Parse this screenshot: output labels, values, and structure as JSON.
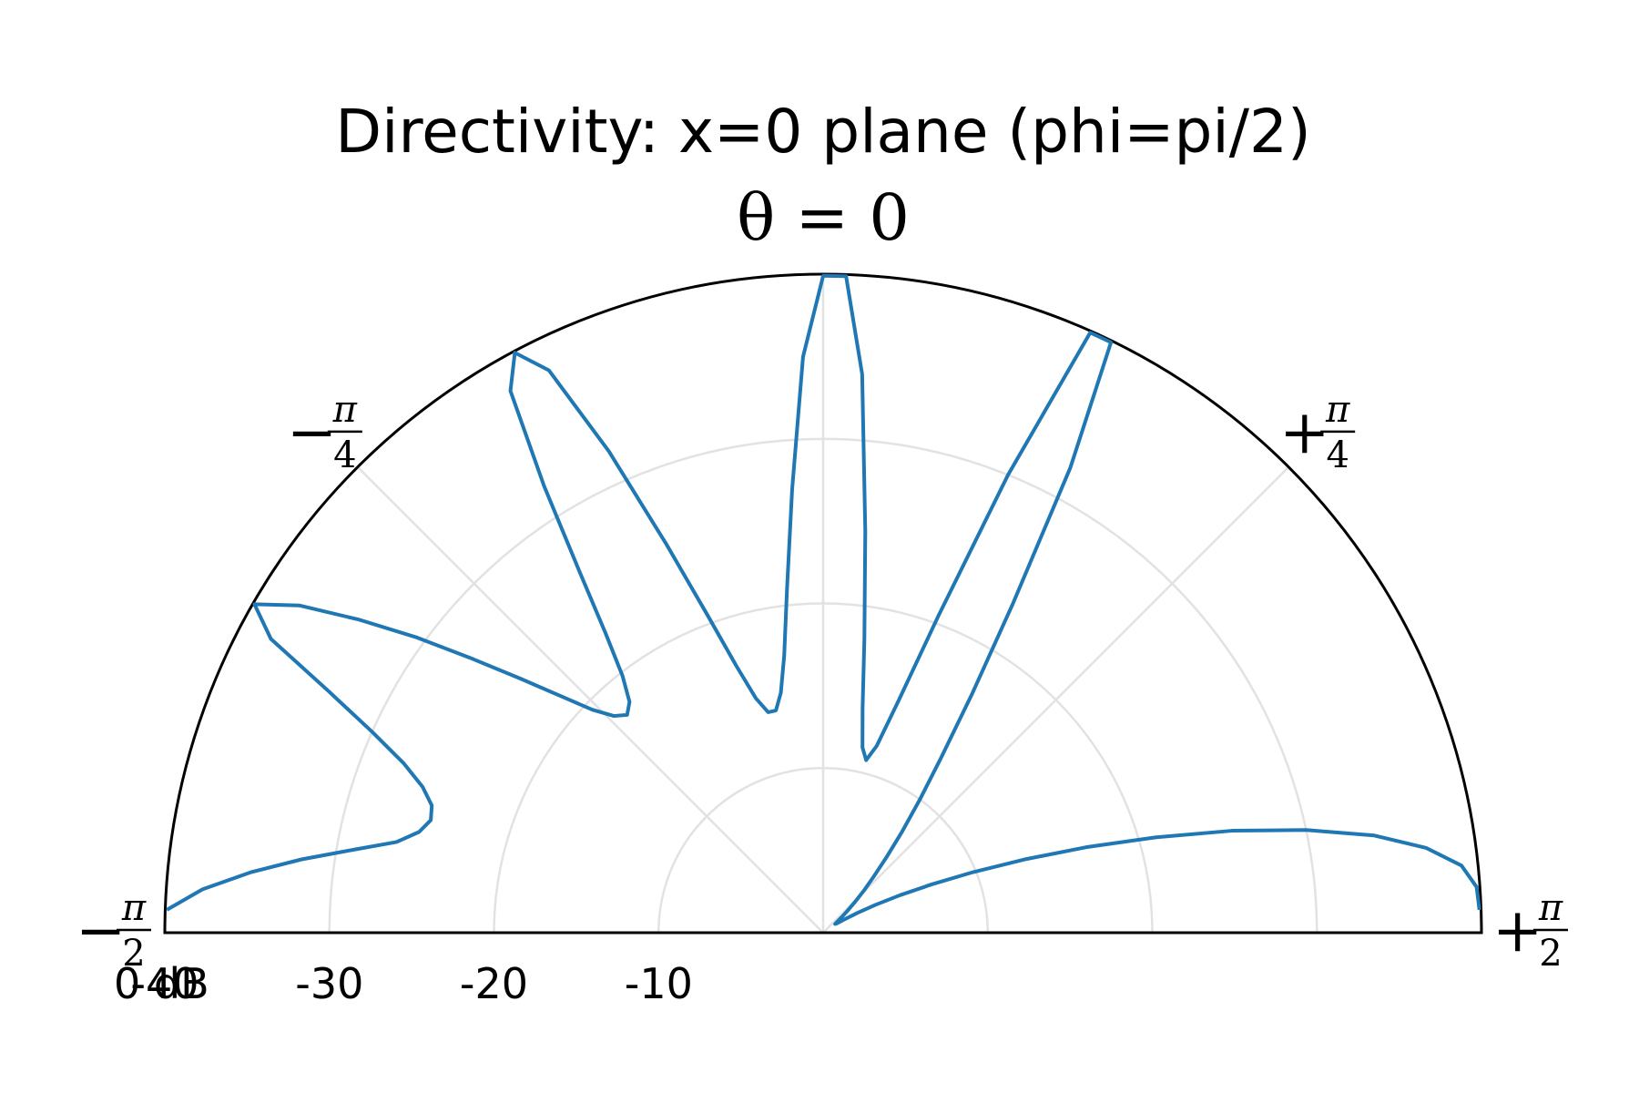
{
  "chart_data": {
    "type": "line",
    "projection": "polar-half",
    "title": "Directivity: x=0 plane (phi=pi/2)",
    "zero_direction_label": "θ = 0",
    "theta_range_rad": [
      -1.5708,
      1.5708
    ],
    "theta_ticks": [
      {
        "sign": "−",
        "num": "π",
        "den": "4",
        "theta_rad": -0.7854
      },
      {
        "sign": "+",
        "num": "π",
        "den": "4",
        "theta_rad": 0.7854
      },
      {
        "sign": "−",
        "num": "π",
        "den": "2",
        "theta_rad": -1.5708
      },
      {
        "sign": "+",
        "num": "π",
        "den": "2",
        "theta_rad": 1.5708
      }
    ],
    "r_axis": {
      "unit_suffix": " dB",
      "range_db": [
        -40,
        0
      ],
      "tick_values": [
        0,
        -10,
        -20,
        -30,
        -40
      ],
      "tick_labels": [
        "0 dB",
        "-10",
        "-20",
        "-30",
        "-40"
      ]
    },
    "series": [
      {
        "name": "directivity",
        "color": "#1f77b4",
        "theta_deg": [
          -88,
          -86,
          -84,
          -82,
          -80,
          -78,
          -76,
          -74,
          -72,
          -70,
          -68,
          -66,
          -64,
          -62,
          -60,
          -58,
          -56,
          -54,
          -52,
          -50,
          -48,
          -46,
          -44,
          -42,
          -40,
          -38,
          -36,
          -34,
          -32,
          -30,
          -28,
          -26,
          -24,
          -22,
          -20,
          -18,
          -16,
          -14,
          -12,
          -10,
          -8,
          -6,
          -4,
          -2,
          0,
          2,
          4,
          6,
          8,
          10,
          12,
          14,
          16,
          18,
          20,
          22,
          24,
          26,
          28,
          30,
          32,
          34,
          36,
          38,
          40,
          42,
          44,
          46,
          48,
          50,
          52,
          54,
          56,
          58,
          60,
          62,
          64,
          66,
          68,
          70,
          72,
          74,
          76,
          78,
          80,
          82,
          84,
          86,
          88
        ],
        "r_db": [
          -39.9,
          -37.8,
          -35.0,
          -32.0,
          -29.0,
          -26.5,
          -25.3,
          -24.8,
          -25.0,
          -25.9,
          -27.5,
          -30.0,
          -33.4,
          -38.0,
          -39.9,
          -37.5,
          -34.0,
          -30.5,
          -27.0,
          -24.0,
          -21.5,
          -19.5,
          -18.3,
          -17.8,
          -18.3,
          -19.8,
          -22.5,
          -26.5,
          -32.0,
          -38.0,
          -39.9,
          -38.0,
          -32.0,
          -25.5,
          -20.5,
          -17.0,
          -14.8,
          -13.8,
          -13.8,
          -14.8,
          -17.0,
          -21.0,
          -27.0,
          -35.0,
          -39.9,
          -39.9,
          -34.0,
          -24.5,
          -18.0,
          -13.8,
          -11.5,
          -10.8,
          -11.8,
          -14.8,
          -20.5,
          -30.0,
          -39.9,
          -39.9,
          -32.0,
          -23.0,
          -17.0,
          -12.8,
          -10.0,
          -7.8,
          -6.0,
          -4.6,
          -3.6,
          -2.7,
          -2.0,
          -1.5,
          -1.1,
          -0.9,
          -1.0,
          -1.5,
          -2.4,
          -3.6,
          -5.2,
          -7.2,
          -9.8,
          -13.0,
          -16.8,
          -21.0,
          -25.6,
          -30.0,
          -34.0,
          -37.0,
          -39.0,
          -39.8,
          -39.9
        ]
      }
    ],
    "grid": true
  }
}
